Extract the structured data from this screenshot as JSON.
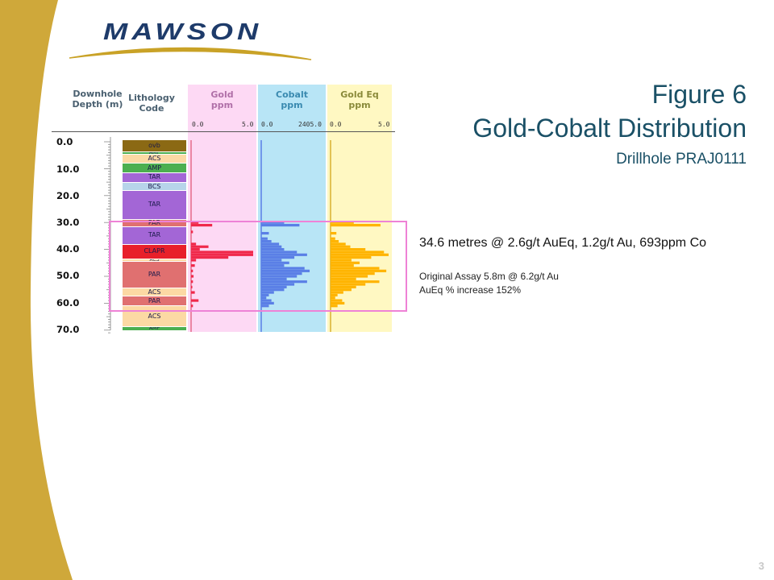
{
  "brand": {
    "logo_text": "MAWSON",
    "gold": "#c9a227",
    "navy": "#1e3b6a"
  },
  "title": {
    "figure": "Figure 6",
    "main": "Gold-Cobalt Distribution",
    "sub": "Drillhole PRAJ0111"
  },
  "columns": {
    "depth_header": "Downhole\nDepth (m)",
    "lithology_header": "Lithology\nCode",
    "gold": {
      "header": "Gold\nppm",
      "scale_min": "0.0",
      "scale_max": "5.0",
      "color": "#f0284a"
    },
    "cobalt": {
      "header": "Cobalt\nppm",
      "scale_min": "0.0",
      "scale_max": "2405.0",
      "color": "#5a7fe6"
    },
    "goldeq": {
      "header": "Gold Eq\nppm",
      "scale_min": "0.0",
      "scale_max": "5.0",
      "color": "#ffb400"
    }
  },
  "depth_labels": [
    "0.0",
    "10.0",
    "20.0",
    "30.0",
    "40.0",
    "50.0",
    "60.0",
    "70.0"
  ],
  "lithology": [
    {
      "code": "ovb",
      "from": 0,
      "to": 4.5,
      "color": "#8b6914"
    },
    {
      "code": "AMP",
      "from": 4.5,
      "to": 5.3,
      "color": "#4caf50"
    },
    {
      "code": "ACS",
      "from": 5.3,
      "to": 8.8,
      "color": "#fcd9a4"
    },
    {
      "code": "AMP",
      "from": 8.8,
      "to": 12.2,
      "color": "#4caf50"
    },
    {
      "code": "TAR",
      "from": 12.2,
      "to": 15.8,
      "color": "#a366d6"
    },
    {
      "code": "BCS",
      "from": 15.8,
      "to": 19,
      "color": "#b7d4ea"
    },
    {
      "code": "TAR",
      "from": 19,
      "to": 29.5,
      "color": "#a366d6"
    },
    {
      "code": "PAR",
      "from": 29.5,
      "to": 32.2,
      "color": "#e07070"
    },
    {
      "code": "TAR",
      "from": 32.2,
      "to": 39,
      "color": "#a366d6"
    },
    {
      "code": "CLAPR",
      "from": 39,
      "to": 44.2,
      "color": "#e8202a"
    },
    {
      "code": "ACS",
      "from": 44.2,
      "to": 45.2,
      "color": "#fcd9a4"
    },
    {
      "code": "PAR",
      "from": 45.2,
      "to": 55.2,
      "color": "#e07070"
    },
    {
      "code": "ACS",
      "from": 55.2,
      "to": 58.2,
      "color": "#fcd9a4"
    },
    {
      "code": "PAR",
      "from": 58.2,
      "to": 61.8,
      "color": "#e07070"
    },
    {
      "code": "ACS",
      "from": 61.8,
      "to": 69.5,
      "color": "#fcd9a4"
    },
    {
      "code": "AMP",
      "from": 69.5,
      "to": 71,
      "color": "#4caf50"
    }
  ],
  "chart_data": [
    {
      "type": "bar",
      "title": "Gold ppm",
      "orientation": "horizontal",
      "ylabel": "Downhole Depth (m)",
      "ylim": [
        0,
        71
      ],
      "xlim": [
        0,
        5
      ],
      "series": [
        {
          "name": "Gold ppm",
          "color": "#f0284a",
          "x_depth": [
            30,
            31,
            33.5,
            38,
            39,
            40,
            41,
            42,
            43,
            44,
            46,
            48,
            50,
            52,
            54,
            56,
            59,
            61
          ],
          "values": [
            0.6,
            1.7,
            0.15,
            0.4,
            1.4,
            0.7,
            5.0,
            5.0,
            3.0,
            0.4,
            0.3,
            0.15,
            0.2,
            0.15,
            0.1,
            0.3,
            0.6,
            0.15
          ]
        }
      ]
    },
    {
      "type": "bar",
      "title": "Cobalt ppm",
      "orientation": "horizontal",
      "ylabel": "Downhole Depth (m)",
      "ylim": [
        0,
        71
      ],
      "xlim": [
        0,
        2405
      ],
      "series": [
        {
          "name": "Cobalt ppm",
          "color": "#5a7fe6",
          "x_depth": [
            30,
            31,
            34,
            36,
            37,
            38,
            39,
            40,
            41,
            42,
            43,
            44,
            45,
            46,
            47,
            48,
            49,
            50,
            51,
            52,
            53,
            54,
            55,
            56,
            57,
            58,
            59,
            60,
            61
          ],
          "values": [
            900,
            1500,
            300,
            250,
            400,
            700,
            800,
            900,
            1400,
            1800,
            1300,
            800,
            1100,
            900,
            1700,
            1900,
            1600,
            1400,
            1000,
            1800,
            1300,
            1000,
            900,
            500,
            300,
            200,
            400,
            500,
            300
          ]
        }
      ]
    },
    {
      "type": "bar",
      "title": "Gold Eq ppm",
      "orientation": "horizontal",
      "ylabel": "Downhole Depth (m)",
      "ylim": [
        0,
        71
      ],
      "xlim": [
        0,
        5
      ],
      "series": [
        {
          "name": "Gold Eq ppm",
          "color": "#ffb400",
          "x_depth": [
            30,
            31,
            34,
            36,
            37,
            38,
            39,
            40,
            41,
            42,
            43,
            44,
            45,
            46,
            47,
            48,
            49,
            50,
            51,
            52,
            53,
            54,
            55,
            56,
            57,
            58,
            59,
            60,
            61
          ],
          "values": [
            2.0,
            4.3,
            0.5,
            0.4,
            0.7,
            1.3,
            1.7,
            3.0,
            4.6,
            5.0,
            3.5,
            1.8,
            2.5,
            2.0,
            4.2,
            4.8,
            3.8,
            3.2,
            2.2,
            4.2,
            3.0,
            2.2,
            1.8,
            1.1,
            0.6,
            0.4,
            1.0,
            1.2,
            0.6
          ]
        }
      ]
    }
  ],
  "note": {
    "main": "34.6 metres @ 2.6g/t AuEq, 1.2g/t Au, 693ppm Co",
    "line2": "Original Assay 5.8m @ 6.2g/t Au",
    "line3": "AuEq % increase 152%"
  },
  "highlight_color": "#ee82d6",
  "page_number": "3"
}
